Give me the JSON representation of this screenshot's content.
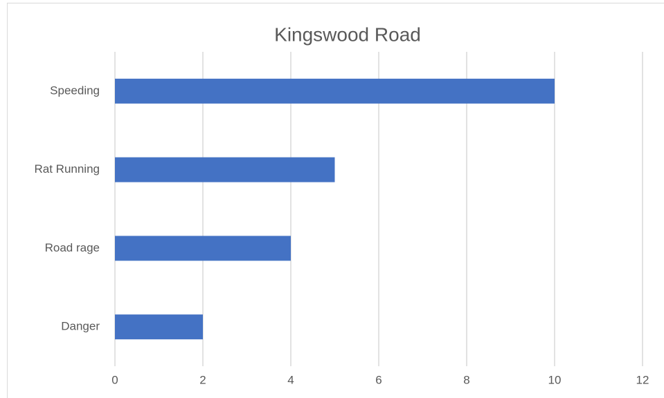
{
  "chart_data": {
    "type": "bar",
    "orientation": "horizontal",
    "title": "Kingswood Road",
    "categories": [
      "Speeding",
      "Rat Running",
      "Road rage",
      "Danger"
    ],
    "values": [
      10,
      5,
      4,
      2
    ],
    "color": "#4472c4",
    "xlim": [
      0,
      12
    ],
    "xticks": [
      0,
      2,
      4,
      6,
      8,
      10,
      12
    ],
    "grid": true
  }
}
